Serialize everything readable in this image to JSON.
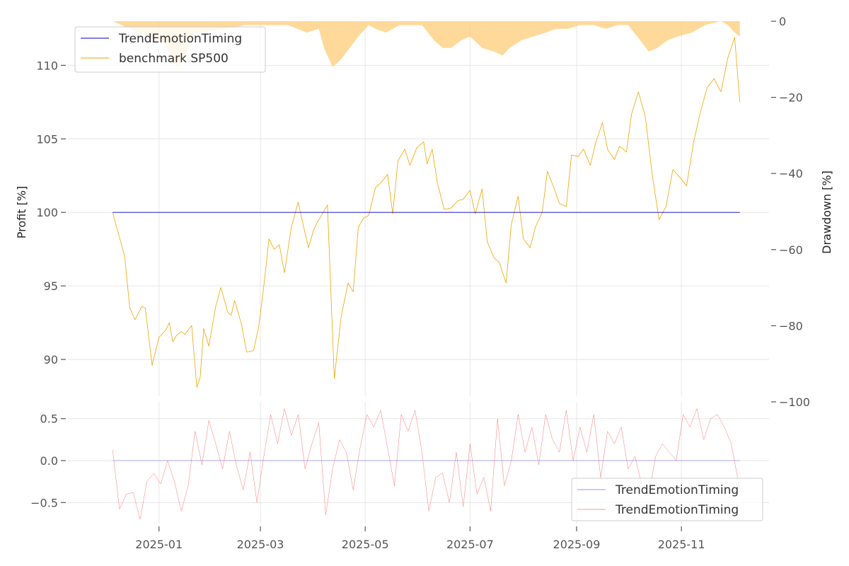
{
  "chart_data": [
    {
      "type": "line",
      "panel": "profit",
      "ylabel": "Profit [%]",
      "y2label": "Drawdown [%]",
      "ylim": [
        87.5,
        113
      ],
      "y2lim": [
        -100,
        0
      ],
      "yticks": [
        90,
        95,
        100,
        105,
        110
      ],
      "y2ticks": [
        0,
        -20,
        -40,
        -60,
        -80,
        -100
      ],
      "ytick_labels": [
        "90",
        "95",
        "100",
        "105",
        "110"
      ],
      "y2tick_labels": [
        "0",
        "−20",
        "−40",
        "−60",
        "−80",
        "−100"
      ],
      "grid": true,
      "legend_position": "upper-left",
      "legend": [
        "TrendEmotionTiming",
        "benchmark SP500"
      ],
      "series": [
        {
          "name": "TrendEmotionTiming",
          "color": "#0000cc",
          "x": [
            "2024-12-05",
            "2025-12-05"
          ],
          "values": [
            100,
            100
          ]
        },
        {
          "name": "benchmark SP500",
          "color": "#f0a500",
          "x": [
            "2024-12-05",
            "2024-12-12",
            "2024-12-15",
            "2024-12-18",
            "2024-12-22",
            "2024-12-24",
            "2024-12-28",
            "2025-01-01",
            "2025-01-05",
            "2025-01-07",
            "2025-01-09",
            "2025-01-11",
            "2025-01-14",
            "2025-01-16",
            "2025-01-20",
            "2025-01-23",
            "2025-01-25",
            "2025-01-27",
            "2025-01-30",
            "2025-02-03",
            "2025-02-06",
            "2025-02-10",
            "2025-02-12",
            "2025-02-14",
            "2025-02-18",
            "2025-02-21",
            "2025-02-25",
            "2025-02-28",
            "2025-03-03",
            "2025-03-06",
            "2025-03-09",
            "2025-03-12",
            "2025-03-15",
            "2025-03-19",
            "2025-03-23",
            "2025-03-26",
            "2025-03-29",
            "2025-04-01",
            "2025-04-03",
            "2025-04-06",
            "2025-04-09",
            "2025-04-13",
            "2025-04-17",
            "2025-04-21",
            "2025-04-24",
            "2025-04-27",
            "2025-04-30",
            "2025-05-03",
            "2025-05-07",
            "2025-05-10",
            "2025-05-14",
            "2025-05-17",
            "2025-05-20",
            "2025-05-24",
            "2025-05-27",
            "2025-05-31",
            "2025-06-04",
            "2025-06-06",
            "2025-06-09",
            "2025-06-12",
            "2025-06-16",
            "2025-06-20",
            "2025-06-24",
            "2025-06-27",
            "2025-07-01",
            "2025-07-04",
            "2025-07-08",
            "2025-07-11",
            "2025-07-15",
            "2025-07-18",
            "2025-07-22",
            "2025-07-25",
            "2025-07-29",
            "2025-08-01",
            "2025-08-05",
            "2025-08-08",
            "2025-08-12",
            "2025-08-15",
            "2025-08-19",
            "2025-08-22",
            "2025-08-26",
            "2025-08-29",
            "2025-09-02",
            "2025-09-05",
            "2025-09-09",
            "2025-09-12",
            "2025-09-16",
            "2025-09-19",
            "2025-09-23",
            "2025-09-26",
            "2025-09-30",
            "2025-10-03",
            "2025-10-07",
            "2025-10-11",
            "2025-10-15",
            "2025-10-19",
            "2025-10-23",
            "2025-10-27",
            "2025-10-31",
            "2025-11-04",
            "2025-11-08",
            "2025-11-12",
            "2025-11-16",
            "2025-11-20",
            "2025-11-24",
            "2025-11-28",
            "2025-12-02",
            "2025-12-05"
          ],
          "values": [
            100.0,
            97.0,
            93.5,
            92.7,
            93.6,
            93.5,
            89.6,
            91.5,
            92.0,
            92.5,
            91.2,
            91.6,
            91.9,
            91.7,
            92.3,
            88.1,
            88.8,
            92.1,
            90.9,
            93.6,
            94.9,
            93.2,
            93.0,
            94.0,
            92.4,
            90.5,
            90.6,
            92.2,
            95.0,
            98.2,
            97.5,
            97.8,
            95.9,
            99.0,
            100.7,
            99.1,
            97.6,
            98.8,
            99.3,
            99.9,
            100.5,
            88.7,
            92.9,
            95.2,
            94.6,
            99.0,
            99.6,
            99.8,
            101.7,
            102.0,
            102.6,
            99.9,
            103.5,
            104.3,
            103.2,
            104.4,
            104.8,
            103.3,
            104.3,
            102.0,
            100.2,
            100.3,
            100.8,
            100.9,
            101.5,
            99.9,
            101.6,
            98.0,
            96.9,
            96.6,
            95.2,
            99.2,
            101.1,
            98.2,
            97.6,
            99.0,
            100.0,
            102.8,
            101.6,
            100.6,
            100.4,
            103.9,
            103.8,
            104.3,
            103.2,
            104.7,
            106.1,
            104.3,
            103.6,
            104.5,
            104.1,
            106.7,
            108.2,
            106.5,
            102.6,
            99.5,
            100.4,
            102.9,
            102.4,
            101.8,
            104.7,
            106.8,
            108.5,
            109.1,
            108.2,
            110.5,
            111.9,
            107.5
          ]
        }
      ],
      "drawdown_area": {
        "color": "#ffcc77",
        "x": [
          "2024-12-05",
          "2025-01-05",
          "2025-01-09",
          "2025-01-12",
          "2025-01-16",
          "2025-01-21",
          "2025-02-10",
          "2025-02-20",
          "2025-03-01",
          "2025-03-17",
          "2025-03-28",
          "2025-04-04",
          "2025-04-07",
          "2025-04-12",
          "2025-04-17",
          "2025-04-22",
          "2025-04-27",
          "2025-05-03",
          "2025-05-07",
          "2025-05-13",
          "2025-05-21",
          "2025-05-27",
          "2025-06-03",
          "2025-06-10",
          "2025-06-15",
          "2025-06-20",
          "2025-06-26",
          "2025-07-01",
          "2025-07-08",
          "2025-07-15",
          "2025-07-20",
          "2025-07-24",
          "2025-07-31",
          "2025-08-07",
          "2025-08-14",
          "2025-08-20",
          "2025-08-27",
          "2025-09-03",
          "2025-09-11",
          "2025-09-18",
          "2025-09-25",
          "2025-10-01",
          "2025-10-08",
          "2025-10-13",
          "2025-10-18",
          "2025-10-24",
          "2025-10-30",
          "2025-11-07",
          "2025-11-15",
          "2025-11-24",
          "2025-11-28",
          "2025-12-02",
          "2025-12-05"
        ],
        "values": [
          0,
          -6,
          -11,
          -12,
          -9,
          -3,
          -2,
          -1,
          -1,
          -1,
          -3,
          -2,
          -7,
          -12,
          -10,
          -7,
          -4,
          -1,
          -2,
          -3,
          -1,
          -1,
          -1,
          -5,
          -7,
          -7,
          -5,
          -4,
          -7,
          -8,
          -9,
          -7,
          -5,
          -4,
          -3,
          -2,
          -2,
          -1,
          -1,
          -2,
          -1,
          -1,
          -5,
          -8,
          -7,
          -5,
          -4,
          -3,
          -1,
          0,
          -1,
          -3,
          -4
        ]
      }
    },
    {
      "type": "line",
      "panel": "signal",
      "ylim": [
        -0.75,
        0.7
      ],
      "yticks": [
        -0.5,
        0.0,
        0.5
      ],
      "ytick_labels": [
        "−0.5",
        "0.0",
        "0.5"
      ],
      "xticks": [
        "2025-01-01",
        "2025-03-01",
        "2025-05-01",
        "2025-07-01",
        "2025-09-01",
        "2025-11-01"
      ],
      "xtick_labels": [
        "2025-01",
        "2025-03",
        "2025-05",
        "2025-07",
        "2025-09",
        "2025-11"
      ],
      "grid": true,
      "legend_position": "lower-right",
      "legend": [
        "TrendEmotionTiming",
        "TrendEmotionTiming"
      ],
      "series": [
        {
          "name": "TrendEmotionTiming",
          "color": "#9999ee",
          "x": [
            "2024-12-05",
            "2025-12-05"
          ],
          "values": [
            0.0,
            0.0
          ]
        },
        {
          "name": "TrendEmotionTiming",
          "color": "#ff6666",
          "x": [
            "2024-12-05",
            "2024-12-09",
            "2024-12-13",
            "2024-12-17",
            "2024-12-21",
            "2024-12-25",
            "2024-12-29",
            "2025-01-02",
            "2025-01-06",
            "2025-01-10",
            "2025-01-14",
            "2025-01-18",
            "2025-01-22",
            "2025-01-26",
            "2025-01-30",
            "2025-02-03",
            "2025-02-07",
            "2025-02-11",
            "2025-02-15",
            "2025-02-19",
            "2025-02-23",
            "2025-02-27",
            "2025-03-03",
            "2025-03-07",
            "2025-03-11",
            "2025-03-15",
            "2025-03-19",
            "2025-03-23",
            "2025-03-27",
            "2025-03-31",
            "2025-04-04",
            "2025-04-08",
            "2025-04-12",
            "2025-04-16",
            "2025-04-20",
            "2025-04-24",
            "2025-04-28",
            "2025-05-02",
            "2025-05-06",
            "2025-05-10",
            "2025-05-14",
            "2025-05-18",
            "2025-05-22",
            "2025-05-26",
            "2025-05-30",
            "2025-06-03",
            "2025-06-07",
            "2025-06-11",
            "2025-06-15",
            "2025-06-19",
            "2025-06-23",
            "2025-06-27",
            "2025-07-01",
            "2025-07-05",
            "2025-07-09",
            "2025-07-13",
            "2025-07-17",
            "2025-07-21",
            "2025-07-25",
            "2025-07-29",
            "2025-08-02",
            "2025-08-06",
            "2025-08-10",
            "2025-08-14",
            "2025-08-18",
            "2025-08-22",
            "2025-08-26",
            "2025-08-30",
            "2025-09-03",
            "2025-09-07",
            "2025-09-11",
            "2025-09-15",
            "2025-09-19",
            "2025-09-23",
            "2025-09-27",
            "2025-10-01",
            "2025-10-05",
            "2025-10-09",
            "2025-10-13",
            "2025-10-17",
            "2025-10-21",
            "2025-10-25",
            "2025-10-29",
            "2025-11-02",
            "2025-11-06",
            "2025-11-10",
            "2025-11-14",
            "2025-11-18",
            "2025-11-22",
            "2025-11-26",
            "2025-11-30",
            "2025-12-05"
          ],
          "values": [
            0.13,
            -0.58,
            -0.4,
            -0.38,
            -0.7,
            -0.25,
            -0.15,
            -0.28,
            0.0,
            -0.25,
            -0.6,
            -0.3,
            0.35,
            -0.05,
            0.48,
            0.2,
            -0.1,
            0.35,
            -0.05,
            -0.35,
            0.1,
            -0.5,
            0.05,
            0.55,
            0.2,
            0.62,
            0.3,
            0.55,
            -0.1,
            0.2,
            0.45,
            -0.65,
            -0.1,
            0.25,
            0.1,
            -0.35,
            0.15,
            0.55,
            0.4,
            0.6,
            0.15,
            -0.3,
            0.55,
            0.35,
            0.6,
            0.1,
            -0.6,
            -0.2,
            -0.15,
            -0.5,
            0.1,
            -0.55,
            0.2,
            -0.4,
            -0.2,
            -0.6,
            0.5,
            -0.3,
            0.0,
            0.55,
            0.1,
            0.4,
            -0.05,
            0.55,
            0.25,
            0.1,
            0.6,
            0.0,
            0.4,
            0.1,
            0.55,
            -0.2,
            0.35,
            0.2,
            0.4,
            -0.1,
            0.05,
            -0.3,
            -0.4,
            0.05,
            0.2,
            0.1,
            0.0,
            0.55,
            0.4,
            0.62,
            0.25,
            0.5,
            0.55,
            0.4,
            0.2,
            -0.35
          ]
        }
      ]
    }
  ]
}
